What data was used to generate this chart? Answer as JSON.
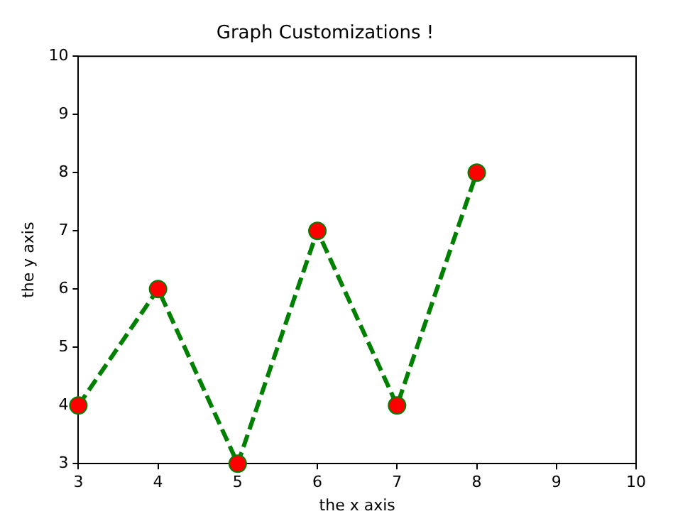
{
  "chart_data": {
    "type": "line",
    "title": "Graph Customizations !",
    "xlabel": "the x axis",
    "ylabel": "the y axis",
    "x": [
      3,
      4,
      5,
      6,
      7,
      8
    ],
    "series": [
      {
        "color": "#008000",
        "colors": [
          "#ff0000",
          "#ff0000",
          "#ff0000",
          "#ff0000",
          "#ff0000",
          "#ff0000"
        ],
        "values": [
          4,
          6,
          3,
          7,
          4,
          8
        ]
      }
    ],
    "xlim": [
      3,
      10
    ],
    "ylim": [
      3,
      10
    ],
    "xticks": [
      3,
      4,
      5,
      6,
      7,
      8,
      9,
      10
    ],
    "yticks": [
      3,
      4,
      5,
      6,
      7,
      8,
      9,
      10
    ],
    "grid": false,
    "legend": false,
    "marker": "circle",
    "line_style": "dashed"
  }
}
